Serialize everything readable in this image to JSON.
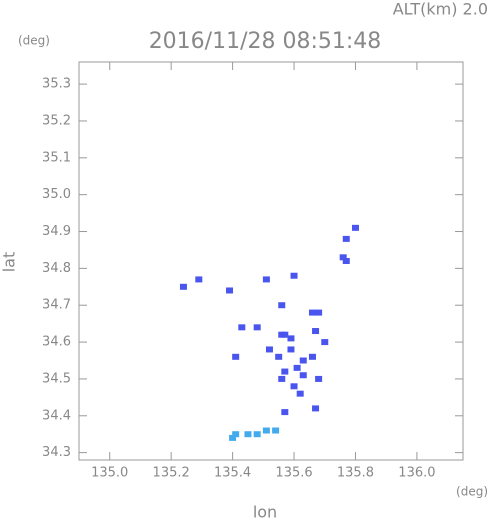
{
  "chart_data": {
    "type": "scatter",
    "title": "2016/11/28 08:51:48",
    "annotation": "ALT(km) 2.0",
    "x_label": "lon",
    "y_label": "lat",
    "x_unit": "(deg)",
    "y_unit": "(deg)",
    "xlim": [
      134.9,
      136.15
    ],
    "ylim": [
      34.28,
      35.36
    ],
    "xticks": [
      {
        "value": 135,
        "label": "135.0"
      },
      135.2,
      135.4,
      135.6,
      135.8,
      {
        "value": 136,
        "label": "136.0"
      }
    ],
    "yticks": [
      34.3,
      34.4,
      34.5,
      34.6,
      34.7,
      34.8,
      34.9,
      {
        "value": 35,
        "label": "35.0"
      },
      35.1,
      35.2,
      35.3
    ],
    "series": [
      {
        "color": "#4a55ee",
        "x": [
          135.24,
          135.29,
          135.39,
          135.77,
          135.77,
          135.76,
          135.8,
          135.6,
          135.51,
          135.66,
          135.68,
          135.43,
          135.57,
          135.56,
          135.59,
          135.52,
          135.59,
          135.63,
          135.55,
          135.57,
          135.61,
          135.63,
          135.68,
          135.66,
          135.7,
          135.56,
          135.6,
          135.62,
          135.57,
          135.67,
          135.41,
          135.67,
          135.48,
          135.56
        ],
        "values": [
          34.75,
          34.77,
          34.74,
          34.88,
          34.82,
          34.83,
          34.91,
          34.78,
          34.77,
          34.68,
          34.68,
          34.64,
          34.62,
          34.62,
          34.61,
          34.58,
          34.58,
          34.55,
          34.56,
          34.52,
          34.53,
          34.51,
          34.5,
          34.56,
          34.6,
          34.5,
          34.48,
          34.46,
          34.41,
          34.42,
          34.56,
          34.63,
          34.64,
          34.7
        ]
      },
      {
        "color": "#44aaee",
        "x": [
          135.4,
          135.41,
          135.45,
          135.48,
          135.51,
          135.54
        ],
        "values": [
          34.34,
          34.35,
          34.35,
          34.35,
          34.36,
          34.36
        ]
      }
    ]
  }
}
